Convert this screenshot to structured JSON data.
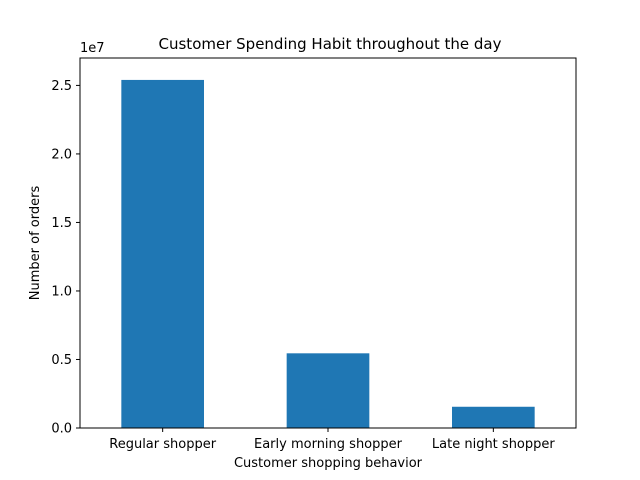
{
  "chart_data": {
    "type": "bar",
    "title": "Customer Spending Habit throughout the day",
    "xlabel": "Customer shopping behavior",
    "ylabel": "Number of orders",
    "y_multiplier_label": "1e7",
    "categories": [
      "Regular shopper",
      "Early morning shopper",
      "Late night shopper"
    ],
    "values": [
      25400000,
      5450000,
      1550000
    ],
    "ylim": [
      0,
      27000000
    ],
    "yticks": [
      0,
      5000000,
      10000000,
      15000000,
      20000000,
      25000000
    ],
    "ytick_labels": [
      "0.0",
      "0.5",
      "1.0",
      "1.5",
      "2.0",
      "2.5"
    ],
    "bar_color": "#1f77b4",
    "grid": false,
    "legend": "none"
  }
}
